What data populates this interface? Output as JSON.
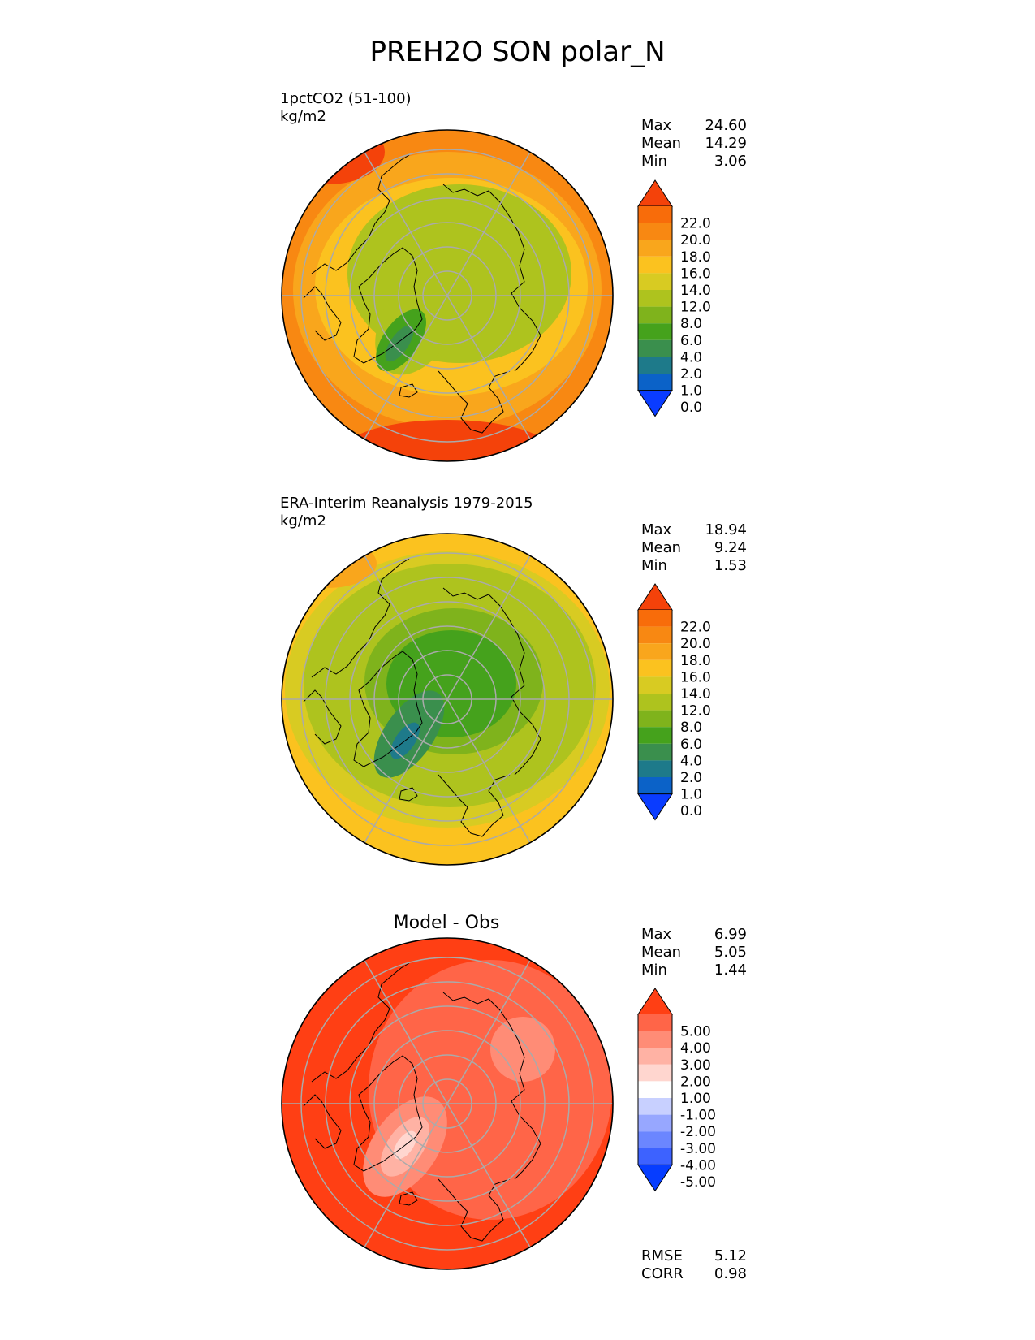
{
  "title": "PREH2O SON polar_N",
  "colors": {
    "abs_scale": [
      "#0a3cff",
      "#0b62c8",
      "#1e7a8a",
      "#3a8f4d",
      "#45a21c",
      "#7fb31c",
      "#aec31e",
      "#d8cb22",
      "#fbc21f",
      "#f9a61c",
      "#f88812",
      "#f86c0a",
      "#f4420a"
    ],
    "diff_scale": [
      "#063dff",
      "#3d62ff",
      "#6b86ff",
      "#97a7ff",
      "#c8d0ff",
      "#ffffff",
      "#ffd6cf",
      "#ffb2a4",
      "#ff8c76",
      "#ff6548",
      "#ff3f14"
    ],
    "grid": "#aaaaaa",
    "coast": "#000000"
  },
  "panels": [
    {
      "id": "model",
      "title_line1": "1pctCO2 (51-100)",
      "title_line2": "kg/m2",
      "stats": {
        "max_label": "Max",
        "max": "24.60",
        "mean_label": "Mean",
        "mean": "14.29",
        "min_label": "Min",
        "min": "3.06"
      },
      "colorbar_labels": [
        "22.0",
        "20.0",
        "18.0",
        "16.0",
        "14.0",
        "12.0",
        "8.0",
        "6.0",
        "4.0",
        "2.0",
        "1.0",
        "0.0"
      ],
      "map_field": "model"
    },
    {
      "id": "obs",
      "title_line1": "ERA-Interim Reanalysis 1979-2015",
      "title_line2": "kg/m2",
      "stats": {
        "max_label": "Max",
        "max": "18.94",
        "mean_label": "Mean",
        "mean": "9.24",
        "min_label": "Min",
        "min": "1.53"
      },
      "colorbar_labels": [
        "22.0",
        "20.0",
        "18.0",
        "16.0",
        "14.0",
        "12.0",
        "8.0",
        "6.0",
        "4.0",
        "2.0",
        "1.0",
        "0.0"
      ],
      "map_field": "obs"
    },
    {
      "id": "diff",
      "title": "Model - Obs",
      "stats": {
        "max_label": "Max",
        "max": "6.99",
        "mean_label": "Mean",
        "mean": "5.05",
        "min_label": "Min",
        "min": "1.44"
      },
      "colorbar_labels": [
        "5.00",
        "4.00",
        "3.00",
        "2.00",
        "1.00",
        "-1.00",
        "-2.00",
        "-3.00",
        "-4.00",
        "-5.00"
      ],
      "extra_stats": {
        "rmse_label": "RMSE",
        "rmse": "5.12",
        "corr_label": "CORR",
        "corr": "0.98"
      },
      "map_field": "diff"
    }
  ]
}
